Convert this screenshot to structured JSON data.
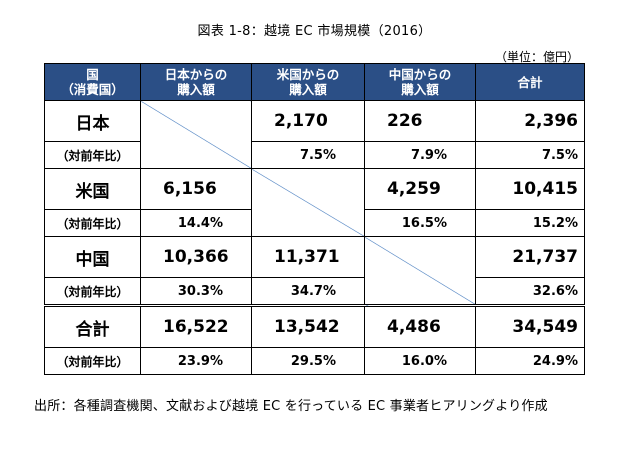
{
  "title": "図表 1-8：越境 EC 市場規模（2016）",
  "unit": "（単位：億円）",
  "headers": [
    "国\n（消費国）",
    "日本からの\n購入額",
    "米国からの\n購入額",
    "中国からの\n購入額",
    "合計"
  ],
  "rows": [
    {
      "country": "日本",
      "yoy_label": "（対前年比）",
      "values": [
        "",
        "2,170",
        "226",
        "2,396"
      ],
      "yoy": [
        "",
        "7.5%",
        "7.9%",
        "7.5%"
      ]
    },
    {
      "country": "米国",
      "yoy_label": "（対前年比）",
      "values": [
        "6,156",
        "",
        "4,259",
        "10,415"
      ],
      "yoy": [
        "14.4%",
        "",
        "16.5%",
        "15.2%"
      ]
    },
    {
      "country": "中国",
      "yoy_label": "（対前年比）",
      "values": [
        "10,366",
        "11,371",
        "",
        "21,737"
      ],
      "yoy": [
        "30.3%",
        "34.7%",
        "",
        "32.6%"
      ]
    },
    {
      "country": "合計",
      "yoy_label": "（対前年比）",
      "values": [
        "16,522",
        "13,542",
        "4,486",
        "34,549"
      ],
      "yoy": [
        "23.9%",
        "29.5%",
        "16.0%",
        "24.9%"
      ]
    }
  ],
  "source": "出所：各種調査機関、文献および越境 EC を行っている EC 事業者ヒアリングより作成"
}
